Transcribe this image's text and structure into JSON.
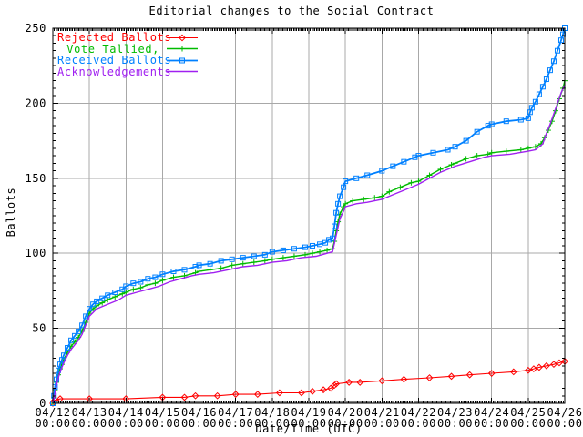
{
  "chart_data": {
    "type": "line",
    "title": "Editorial changes to the Social Contract",
    "xlabel": "Date/Time (UTC)",
    "ylabel": "Ballots",
    "x_unit": "days since 04/12 00:00 UTC",
    "x_range": [
      0,
      14
    ],
    "y_range": [
      0,
      250
    ],
    "grid": true,
    "legend_position": "top-left",
    "axis_color": "#000000",
    "grid_color": "#a8a8a8",
    "y_ticks": [
      0,
      50,
      100,
      150,
      200,
      250
    ],
    "y_minor_step": 5,
    "x_minor_per_day": 24,
    "x_ticks": [
      {
        "date": "04/12",
        "time": "00:00"
      },
      {
        "date": "04/13",
        "time": "00:00"
      },
      {
        "date": "04/14",
        "time": "00:00"
      },
      {
        "date": "04/15",
        "time": "00:00"
      },
      {
        "date": "04/16",
        "time": "00:00"
      },
      {
        "date": "04/17",
        "time": "00:00"
      },
      {
        "date": "04/18",
        "time": "00:00"
      },
      {
        "date": "04/19",
        "time": "00:00"
      },
      {
        "date": "04/20",
        "time": "00:00"
      },
      {
        "date": "04/21",
        "time": "00:00"
      },
      {
        "date": "04/22",
        "time": "00:00"
      },
      {
        "date": "04/23",
        "time": "00:00"
      },
      {
        "date": "04/24",
        "time": "00:00"
      },
      {
        "date": "04/25",
        "time": "00:00"
      },
      {
        "date": "04/26",
        "time": "00:00"
      }
    ],
    "series": [
      {
        "name": "Rejected Ballots",
        "color": "#ff0000",
        "marker": "diamond",
        "line_width": 1.1,
        "points": [
          [
            0,
            0
          ],
          [
            0.05,
            2
          ],
          [
            0.2,
            3
          ],
          [
            1.0,
            3
          ],
          [
            2.0,
            3
          ],
          [
            3.0,
            4
          ],
          [
            3.6,
            4
          ],
          [
            3.9,
            5
          ],
          [
            4.5,
            5
          ],
          [
            5.0,
            6
          ],
          [
            5.6,
            6
          ],
          [
            6.2,
            7
          ],
          [
            6.8,
            7
          ],
          [
            7.1,
            8
          ],
          [
            7.4,
            9
          ],
          [
            7.6,
            10
          ],
          [
            7.7,
            12
          ],
          [
            7.75,
            13
          ],
          [
            8.1,
            14
          ],
          [
            8.4,
            14
          ],
          [
            9.0,
            15
          ],
          [
            9.6,
            16
          ],
          [
            10.3,
            17
          ],
          [
            10.9,
            18
          ],
          [
            11.4,
            19
          ],
          [
            12.0,
            20
          ],
          [
            12.6,
            21
          ],
          [
            13.0,
            22
          ],
          [
            13.15,
            23
          ],
          [
            13.3,
            24
          ],
          [
            13.5,
            25
          ],
          [
            13.7,
            26
          ],
          [
            13.85,
            27
          ],
          [
            14.0,
            28
          ]
        ]
      },
      {
        "name": "Vote Tallied,",
        "color": "#00bb00",
        "marker": "plus",
        "line_width": 1.4,
        "points": [
          [
            0,
            0
          ],
          [
            0.03,
            4
          ],
          [
            0.06,
            9
          ],
          [
            0.1,
            14
          ],
          [
            0.15,
            19
          ],
          [
            0.2,
            23
          ],
          [
            0.25,
            26
          ],
          [
            0.3,
            29
          ],
          [
            0.4,
            34
          ],
          [
            0.5,
            38
          ],
          [
            0.6,
            41
          ],
          [
            0.7,
            44
          ],
          [
            0.8,
            48
          ],
          [
            0.9,
            54
          ],
          [
            1.0,
            60
          ],
          [
            1.1,
            63
          ],
          [
            1.2,
            65
          ],
          [
            1.35,
            67
          ],
          [
            1.5,
            69
          ],
          [
            1.7,
            71
          ],
          [
            1.9,
            73
          ],
          [
            2.0,
            74
          ],
          [
            2.2,
            76
          ],
          [
            2.4,
            77
          ],
          [
            2.6,
            79
          ],
          [
            2.8,
            80
          ],
          [
            3.0,
            82
          ],
          [
            3.3,
            84
          ],
          [
            3.6,
            85
          ],
          [
            3.9,
            87
          ],
          [
            4.0,
            88
          ],
          [
            4.3,
            89
          ],
          [
            4.6,
            90
          ],
          [
            4.9,
            92
          ],
          [
            5.2,
            93
          ],
          [
            5.5,
            94
          ],
          [
            5.8,
            95
          ],
          [
            6.0,
            96
          ],
          [
            6.3,
            97
          ],
          [
            6.6,
            98
          ],
          [
            6.9,
            99
          ],
          [
            7.1,
            100
          ],
          [
            7.3,
            101
          ],
          [
            7.5,
            102
          ],
          [
            7.65,
            103
          ],
          [
            7.7,
            108
          ],
          [
            7.75,
            115
          ],
          [
            7.8,
            121
          ],
          [
            7.85,
            126
          ],
          [
            7.95,
            131
          ],
          [
            8.0,
            133
          ],
          [
            8.2,
            135
          ],
          [
            8.5,
            136
          ],
          [
            8.8,
            137
          ],
          [
            9.0,
            138
          ],
          [
            9.2,
            141
          ],
          [
            9.5,
            144
          ],
          [
            9.8,
            147
          ],
          [
            10.0,
            148
          ],
          [
            10.3,
            152
          ],
          [
            10.6,
            156
          ],
          [
            10.9,
            159
          ],
          [
            11.0,
            160
          ],
          [
            11.3,
            163
          ],
          [
            11.6,
            165
          ],
          [
            11.9,
            166
          ],
          [
            12.0,
            167
          ],
          [
            12.4,
            168
          ],
          [
            12.8,
            169
          ],
          [
            13.0,
            170
          ],
          [
            13.2,
            171
          ],
          [
            13.35,
            173
          ],
          [
            13.45,
            177
          ],
          [
            13.55,
            182
          ],
          [
            13.65,
            188
          ],
          [
            13.75,
            195
          ],
          [
            13.85,
            203
          ],
          [
            13.95,
            210
          ],
          [
            14.0,
            215
          ]
        ]
      },
      {
        "name": "Received Ballots",
        "color": "#0080ff",
        "marker": "square",
        "line_width": 1.8,
        "points": [
          [
            0,
            0
          ],
          [
            0.03,
            5
          ],
          [
            0.06,
            11
          ],
          [
            0.1,
            16
          ],
          [
            0.15,
            22
          ],
          [
            0.2,
            26
          ],
          [
            0.25,
            29
          ],
          [
            0.3,
            32
          ],
          [
            0.4,
            37
          ],
          [
            0.5,
            42
          ],
          [
            0.6,
            45
          ],
          [
            0.7,
            48
          ],
          [
            0.8,
            52
          ],
          [
            0.9,
            58
          ],
          [
            1.0,
            63
          ],
          [
            1.1,
            66
          ],
          [
            1.2,
            68
          ],
          [
            1.35,
            70
          ],
          [
            1.5,
            72
          ],
          [
            1.7,
            74
          ],
          [
            1.9,
            76
          ],
          [
            2.0,
            78
          ],
          [
            2.2,
            80
          ],
          [
            2.4,
            81
          ],
          [
            2.6,
            83
          ],
          [
            2.8,
            84
          ],
          [
            3.0,
            86
          ],
          [
            3.3,
            88
          ],
          [
            3.6,
            89
          ],
          [
            3.9,
            91
          ],
          [
            4.0,
            92
          ],
          [
            4.3,
            93
          ],
          [
            4.6,
            95
          ],
          [
            4.9,
            96
          ],
          [
            5.2,
            97
          ],
          [
            5.5,
            98
          ],
          [
            5.8,
            99
          ],
          [
            6.0,
            101
          ],
          [
            6.3,
            102
          ],
          [
            6.6,
            103
          ],
          [
            6.9,
            104
          ],
          [
            7.1,
            105
          ],
          [
            7.3,
            106
          ],
          [
            7.45,
            107
          ],
          [
            7.55,
            109
          ],
          [
            7.65,
            110
          ],
          [
            7.7,
            118
          ],
          [
            7.75,
            127
          ],
          [
            7.8,
            133
          ],
          [
            7.85,
            138
          ],
          [
            7.95,
            144
          ],
          [
            8.0,
            148
          ],
          [
            8.3,
            150
          ],
          [
            8.6,
            152
          ],
          [
            9.0,
            155
          ],
          [
            9.3,
            158
          ],
          [
            9.6,
            161
          ],
          [
            9.9,
            164
          ],
          [
            10.0,
            165
          ],
          [
            10.4,
            167
          ],
          [
            10.8,
            169
          ],
          [
            11.0,
            171
          ],
          [
            11.3,
            175
          ],
          [
            11.6,
            181
          ],
          [
            11.9,
            185
          ],
          [
            12.0,
            186
          ],
          [
            12.4,
            188
          ],
          [
            12.8,
            189
          ],
          [
            13.0,
            190
          ],
          [
            13.05,
            194
          ],
          [
            13.1,
            197
          ],
          [
            13.2,
            201
          ],
          [
            13.3,
            206
          ],
          [
            13.4,
            211
          ],
          [
            13.5,
            216
          ],
          [
            13.6,
            222
          ],
          [
            13.7,
            228
          ],
          [
            13.8,
            235
          ],
          [
            13.9,
            242
          ],
          [
            13.95,
            246
          ],
          [
            14.0,
            250
          ]
        ]
      },
      {
        "name": "Acknowledgements",
        "color": "#a020f0",
        "marker": "none",
        "line_width": 1.4,
        "points": [
          [
            0,
            0
          ],
          [
            0.05,
            5
          ],
          [
            0.1,
            12
          ],
          [
            0.15,
            17
          ],
          [
            0.2,
            21
          ],
          [
            0.3,
            27
          ],
          [
            0.4,
            32
          ],
          [
            0.5,
            36
          ],
          [
            0.6,
            39
          ],
          [
            0.7,
            42
          ],
          [
            0.8,
            46
          ],
          [
            0.9,
            52
          ],
          [
            1.0,
            58
          ],
          [
            1.2,
            63
          ],
          [
            1.4,
            65
          ],
          [
            1.6,
            67
          ],
          [
            1.8,
            69
          ],
          [
            2.0,
            72
          ],
          [
            2.3,
            74
          ],
          [
            2.6,
            76
          ],
          [
            2.9,
            78
          ],
          [
            3.2,
            81
          ],
          [
            3.5,
            83
          ],
          [
            3.8,
            85
          ],
          [
            4.0,
            86
          ],
          [
            4.4,
            87
          ],
          [
            4.8,
            89
          ],
          [
            5.2,
            91
          ],
          [
            5.6,
            92
          ],
          [
            6.0,
            94
          ],
          [
            6.4,
            95
          ],
          [
            6.8,
            97
          ],
          [
            7.2,
            98
          ],
          [
            7.5,
            100
          ],
          [
            7.65,
            101
          ],
          [
            7.75,
            112
          ],
          [
            7.85,
            123
          ],
          [
            7.95,
            128
          ],
          [
            8.0,
            131
          ],
          [
            8.3,
            133
          ],
          [
            8.6,
            134
          ],
          [
            9.0,
            136
          ],
          [
            9.3,
            139
          ],
          [
            9.6,
            142
          ],
          [
            10.0,
            146
          ],
          [
            10.3,
            150
          ],
          [
            10.6,
            154
          ],
          [
            11.0,
            158
          ],
          [
            11.4,
            161
          ],
          [
            11.8,
            164
          ],
          [
            12.0,
            165
          ],
          [
            12.5,
            166
          ],
          [
            13.0,
            168
          ],
          [
            13.2,
            169
          ],
          [
            13.4,
            173
          ],
          [
            13.5,
            180
          ],
          [
            13.6,
            186
          ],
          [
            13.7,
            193
          ],
          [
            13.8,
            200
          ],
          [
            13.9,
            207
          ],
          [
            14.0,
            212
          ]
        ]
      }
    ]
  }
}
